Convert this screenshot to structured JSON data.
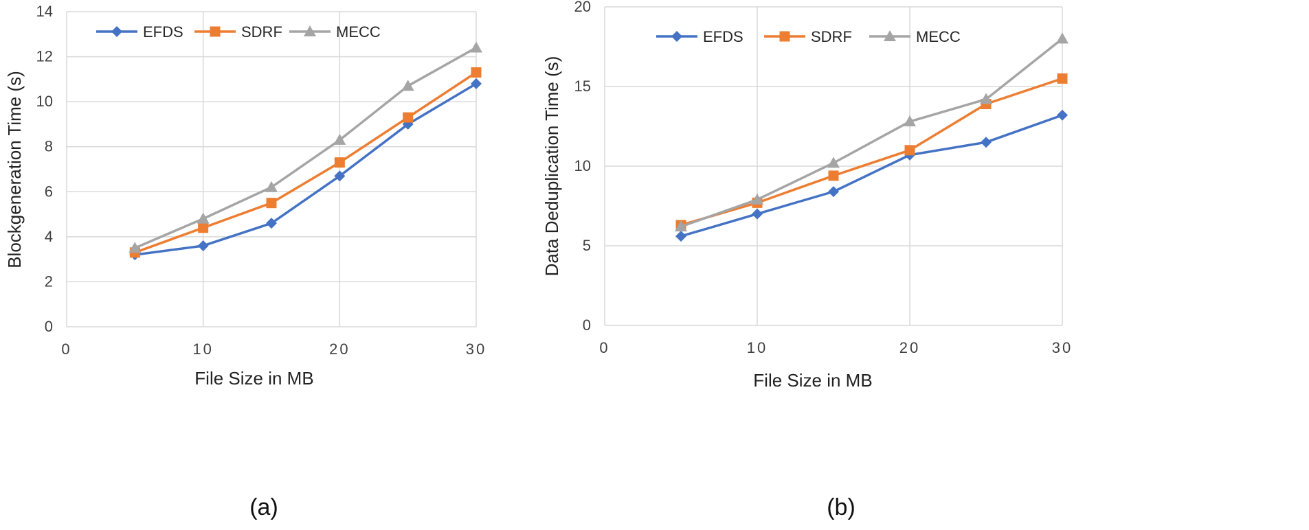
{
  "chart_data": [
    {
      "type": "line",
      "panel_label": "(a)",
      "xlabel": "File Size in MB",
      "ylabel": "Blockgeneration Time (s)",
      "xlim": [
        0,
        30
      ],
      "ylim": [
        0,
        14
      ],
      "xticks": [
        0,
        10,
        20,
        30
      ],
      "yticks": [
        0,
        2,
        4,
        6,
        8,
        10,
        12,
        14
      ],
      "grid": true,
      "legend_position": "top-left",
      "x": [
        5,
        10,
        15,
        20,
        25,
        30
      ],
      "series": [
        {
          "name": "EFDS",
          "color": "#4472C4",
          "marker": "diamond",
          "values": [
            3.2,
            3.6,
            4.6,
            6.7,
            9.0,
            10.8
          ]
        },
        {
          "name": "SDRF",
          "color": "#ED7D31",
          "marker": "square",
          "values": [
            3.3,
            4.4,
            5.5,
            7.3,
            9.3,
            11.3
          ]
        },
        {
          "name": "MECC",
          "color": "#A5A5A5",
          "marker": "triangle",
          "values": [
            3.5,
            4.8,
            6.2,
            8.3,
            10.7,
            12.4
          ]
        }
      ]
    },
    {
      "type": "line",
      "panel_label": "(b)",
      "xlabel": "File Size in MB",
      "ylabel": "Data Deduplication Time (s)",
      "xlim": [
        0,
        30
      ],
      "ylim": [
        0,
        20
      ],
      "xticks": [
        0,
        10,
        20,
        30
      ],
      "yticks": [
        0,
        5,
        10,
        15,
        20
      ],
      "grid": true,
      "legend_position": "top-center",
      "x": [
        5,
        10,
        15,
        20,
        25,
        30
      ],
      "series": [
        {
          "name": "EFDS",
          "color": "#4472C4",
          "marker": "diamond",
          "values": [
            5.6,
            7.0,
            8.4,
            10.7,
            11.5,
            13.2
          ]
        },
        {
          "name": "SDRF",
          "color": "#ED7D31",
          "marker": "square",
          "values": [
            6.3,
            7.7,
            9.4,
            11.0,
            13.9,
            15.5
          ]
        },
        {
          "name": "MECC",
          "color": "#A5A5A5",
          "marker": "triangle",
          "values": [
            6.2,
            7.9,
            10.2,
            12.8,
            14.2,
            18.0
          ]
        }
      ]
    }
  ]
}
